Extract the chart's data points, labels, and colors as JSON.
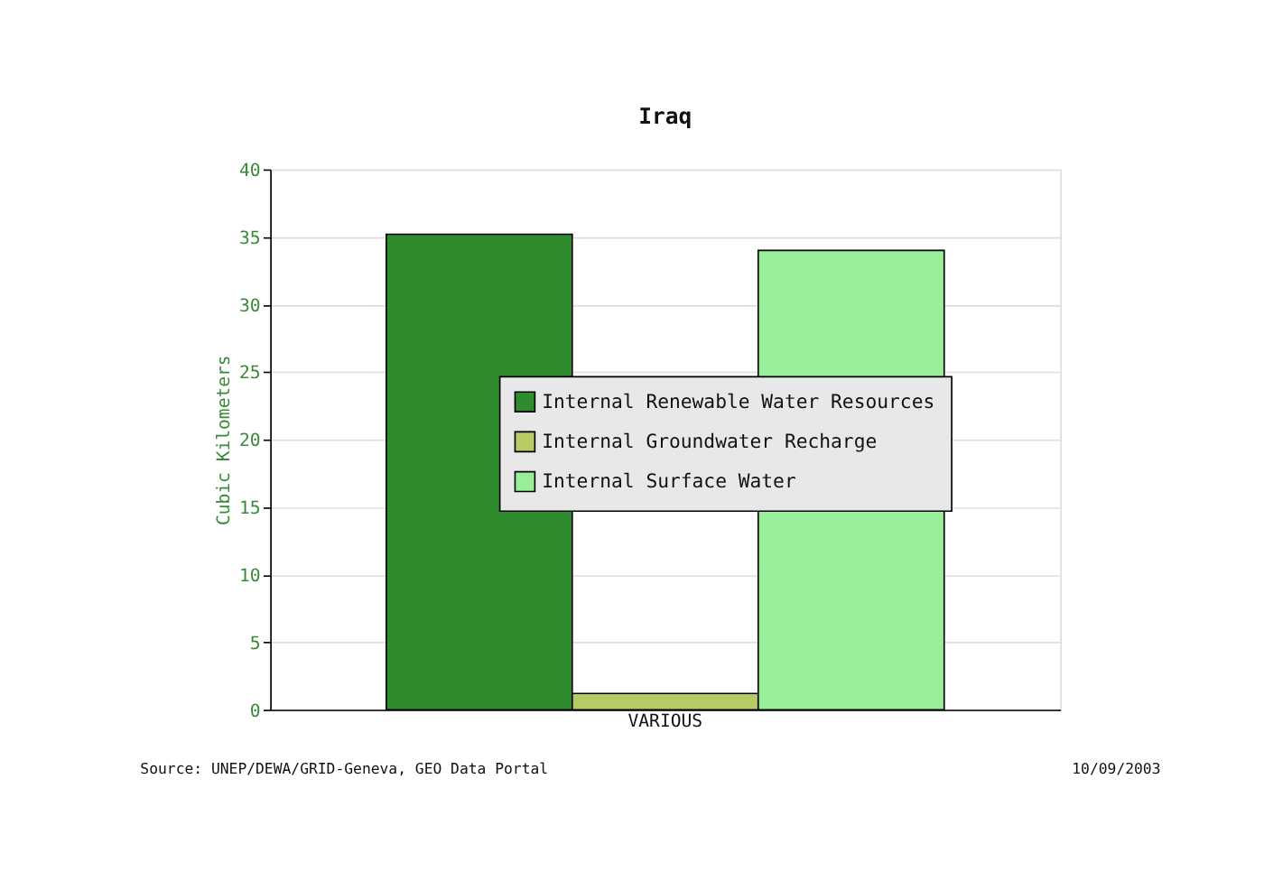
{
  "chart_data": {
    "type": "bar",
    "title": "Iraq",
    "ylabel": "Cubic Kilometers",
    "categories": [
      "VARIOUS"
    ],
    "series": [
      {
        "name": "Internal Renewable Water Resources",
        "color": "#2e8b2e",
        "values": [
          35.2
        ]
      },
      {
        "name": "Internal Groundwater Recharge",
        "color": "#b5cc66",
        "values": [
          1.2
        ]
      },
      {
        "name": "Internal Surface Water",
        "color": "#99ee99",
        "values": [
          34.0
        ]
      }
    ],
    "ylim": [
      0,
      40
    ],
    "yticks": [
      0,
      5,
      10,
      15,
      20,
      25,
      30,
      35,
      40
    ],
    "grid": "y",
    "legend": "right",
    "annotations": [
      "Source: UNEP/DEWA/GRID-Geneva, GEO Data Portal",
      "10/09/2003"
    ]
  }
}
